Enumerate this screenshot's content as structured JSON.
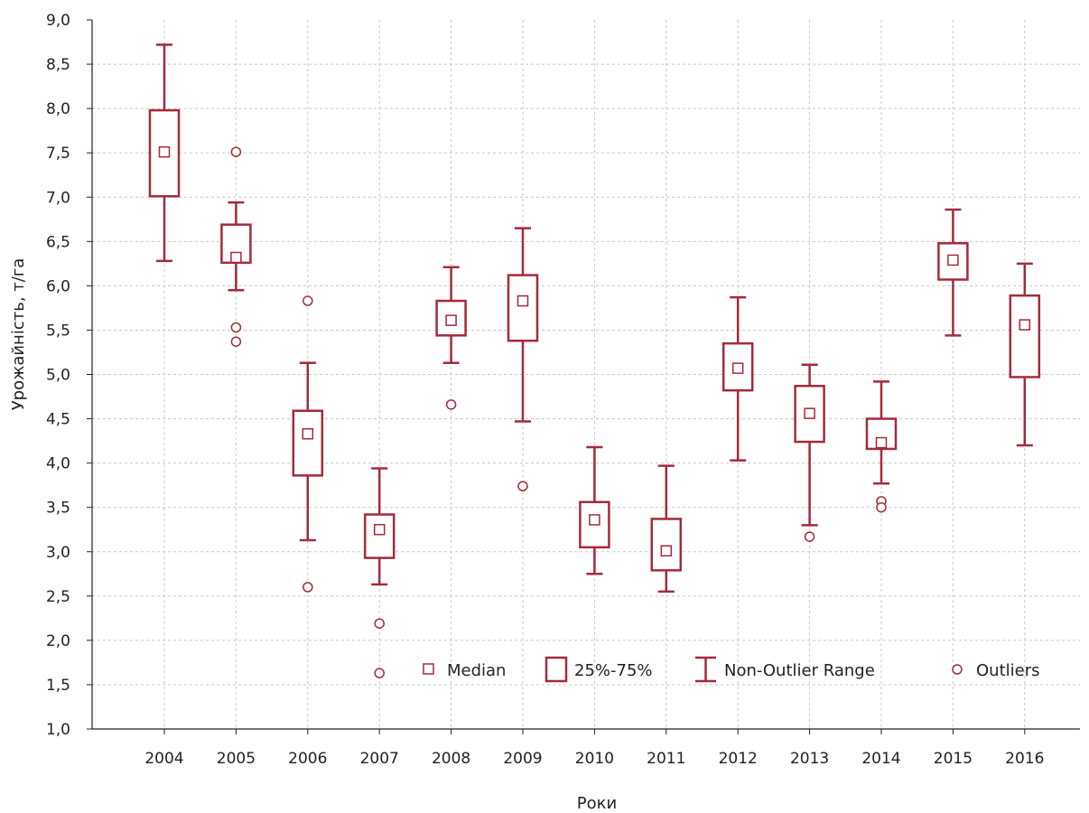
{
  "chart_data": {
    "type": "boxplot",
    "xlabel": "Роки",
    "ylabel": "Урожайність, т/га",
    "ylim": [
      1.0,
      9.0
    ],
    "y_ticks": [
      "1,0",
      "1,5",
      "2,0",
      "2,5",
      "3,0",
      "3,5",
      "4,0",
      "4,5",
      "5,0",
      "5,5",
      "6,0",
      "6,5",
      "7,0",
      "7,5",
      "8,0",
      "8,5",
      "9,0"
    ],
    "grid": true,
    "legend_position": "bottom-right-inside",
    "colors": {
      "series": "#a52a3a",
      "grid": "#c8c8c8",
      "axis": "#222222"
    },
    "legend": {
      "median": "Median",
      "box": "25%-75%",
      "range": "Non-Outlier Range",
      "outliers": "Outliers"
    },
    "boxes": [
      {
        "year": "2004",
        "min": 6.28,
        "q1": 7.01,
        "median": 7.51,
        "q3": 7.98,
        "max": 8.72,
        "outliers": []
      },
      {
        "year": "2005",
        "min": 5.95,
        "q1": 6.26,
        "median": 6.32,
        "q3": 6.69,
        "max": 6.94,
        "outliers": [
          7.51,
          5.53,
          5.37
        ]
      },
      {
        "year": "2006",
        "min": 3.13,
        "q1": 3.86,
        "median": 4.33,
        "q3": 4.59,
        "max": 5.13,
        "outliers": [
          5.83,
          2.6
        ]
      },
      {
        "year": "2007",
        "min": 2.63,
        "q1": 2.93,
        "median": 3.25,
        "q3": 3.42,
        "max": 3.94,
        "outliers": [
          2.19,
          1.63
        ]
      },
      {
        "year": "2008",
        "min": 5.13,
        "q1": 5.44,
        "median": 5.61,
        "q3": 5.83,
        "max": 6.21,
        "outliers": [
          4.66
        ]
      },
      {
        "year": "2009",
        "min": 4.47,
        "q1": 5.38,
        "median": 5.83,
        "q3": 6.12,
        "max": 6.65,
        "outliers": [
          3.74
        ]
      },
      {
        "year": "2010",
        "min": 2.75,
        "q1": 3.05,
        "median": 3.36,
        "q3": 3.56,
        "max": 4.18,
        "outliers": []
      },
      {
        "year": "2011",
        "min": 2.55,
        "q1": 2.79,
        "median": 3.01,
        "q3": 3.37,
        "max": 3.97,
        "outliers": []
      },
      {
        "year": "2012",
        "min": 4.03,
        "q1": 4.82,
        "median": 5.07,
        "q3": 5.35,
        "max": 5.87,
        "outliers": []
      },
      {
        "year": "2013",
        "min": 3.3,
        "q1": 4.24,
        "median": 4.56,
        "q3": 4.87,
        "max": 5.11,
        "outliers": [
          3.17
        ]
      },
      {
        "year": "2014",
        "min": 3.77,
        "q1": 4.16,
        "median": 4.23,
        "q3": 4.5,
        "max": 4.92,
        "outliers": [
          3.57,
          3.5
        ]
      },
      {
        "year": "2015",
        "min": 5.44,
        "q1": 6.07,
        "median": 6.29,
        "q3": 6.48,
        "max": 6.86,
        "outliers": []
      },
      {
        "year": "2016",
        "min": 4.2,
        "q1": 4.97,
        "median": 5.56,
        "q3": 5.89,
        "max": 6.25,
        "outliers": []
      }
    ]
  }
}
